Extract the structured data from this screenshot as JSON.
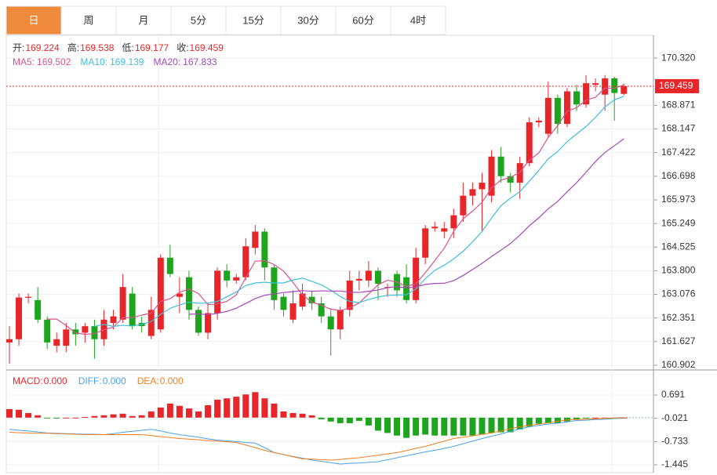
{
  "tabs": [
    "日",
    "周",
    "月",
    "5分",
    "15分",
    "30分",
    "60分",
    "4时"
  ],
  "chart_data": [
    {
      "type": "candlestick",
      "header": [
        {
          "name": "开:",
          "value": 169.224
        },
        {
          "name": "高:",
          "value": 169.538
        },
        {
          "name": "低:",
          "value": 169.177
        },
        {
          "name": "收:",
          "value": 169.459
        }
      ],
      "ma": [
        {
          "name": "MA5:",
          "value": 169.502,
          "color": "#d9538b"
        },
        {
          "name": "MA10:",
          "value": 169.139,
          "color": "#3fbfdc"
        },
        {
          "name": "MA20:",
          "value": 167.833,
          "color": "#a647b8"
        }
      ],
      "up_color": "#e8262a",
      "down_color": "#1ea51e",
      "open": [
        161.6,
        161.7,
        162.97,
        162.9,
        162.3,
        161.5,
        161.5,
        162.0,
        161.9,
        162.1,
        161.7,
        162.2,
        162.3,
        163.1,
        162.2,
        161.8,
        162.0,
        164.2,
        163.0,
        163.6,
        162.6,
        161.9,
        162.5,
        163.8,
        163.5,
        163.6,
        164.5,
        165.0,
        163.9,
        163.0,
        162.3,
        162.7,
        163.0,
        162.8,
        162.4,
        162.0,
        162.6,
        163.5,
        163.5,
        163.8,
        163.3,
        163.7,
        163.6,
        162.9,
        164.2,
        165.1,
        165.0,
        165.1,
        165.5,
        166.1,
        166.3,
        166.1,
        167.3,
        166.7,
        166.5,
        167.1,
        168.35,
        168.0,
        169.1,
        168.3,
        169.3,
        168.9,
        169.5,
        169.2,
        169.7,
        169.224
      ],
      "high": [
        162.1,
        163.1,
        163.1,
        163.3,
        162.4,
        161.9,
        162.2,
        162.2,
        162.2,
        162.3,
        162.6,
        162.6,
        163.7,
        163.3,
        162.4,
        163.0,
        164.3,
        164.6,
        163.6,
        163.8,
        162.7,
        162.8,
        163.9,
        164.0,
        163.7,
        164.8,
        165.2,
        165.1,
        164.0,
        163.1,
        163.2,
        163.4,
        163.2,
        163.0,
        162.6,
        162.7,
        163.8,
        163.8,
        164.1,
        163.9,
        163.4,
        163.8,
        164.0,
        164.5,
        165.2,
        165.3,
        165.3,
        165.7,
        166.5,
        166.5,
        166.8,
        167.5,
        167.6,
        166.8,
        167.3,
        168.5,
        168.5,
        169.6,
        169.2,
        169.4,
        169.5,
        169.8,
        169.7,
        169.8,
        169.75,
        169.538
      ],
      "low": [
        160.95,
        161.5,
        162.8,
        162.2,
        161.4,
        161.3,
        161.3,
        161.5,
        161.6,
        161.1,
        161.5,
        162.0,
        162.2,
        162.0,
        161.9,
        161.7,
        161.9,
        163.6,
        162.5,
        162.3,
        161.8,
        161.7,
        162.3,
        163.3,
        163.4,
        163.5,
        164.3,
        163.5,
        162.6,
        162.4,
        162.2,
        162.6,
        162.6,
        162.2,
        161.2,
        161.7,
        162.4,
        163.2,
        163.3,
        162.9,
        163.0,
        163.0,
        162.8,
        162.8,
        164.0,
        165.0,
        164.8,
        164.8,
        165.3,
        165.8,
        165.0,
        165.9,
        166.5,
        166.2,
        166.0,
        167.0,
        168.2,
        167.9,
        168.0,
        168.2,
        168.7,
        168.8,
        169.3,
        168.7,
        168.4,
        169.177
      ],
      "close": [
        161.7,
        162.98,
        163.0,
        162.3,
        161.6,
        161.7,
        162.0,
        161.85,
        162.1,
        161.7,
        162.3,
        162.4,
        163.3,
        162.1,
        162.1,
        162.6,
        164.2,
        163.7,
        163.1,
        162.6,
        161.9,
        162.5,
        163.8,
        163.5,
        163.6,
        164.55,
        165.0,
        163.9,
        162.9,
        162.6,
        162.8,
        163.1,
        162.8,
        162.4,
        162.0,
        162.6,
        163.5,
        163.55,
        163.8,
        163.4,
        163.3,
        163.2,
        162.9,
        164.2,
        165.1,
        165.15,
        165.1,
        165.5,
        166.1,
        166.3,
        166.5,
        167.3,
        166.7,
        166.5,
        167.1,
        168.35,
        168.4,
        169.1,
        168.3,
        169.3,
        168.9,
        169.55,
        169.55,
        169.7,
        169.25,
        169.459
      ],
      "last_price": 169.459,
      "ylim": [
        160.757,
        171.02
      ],
      "yticks": [
        {
          "value": 170.32,
          "label": "170.320"
        },
        168.871,
        168.147,
        167.422,
        166.698,
        165.973,
        165.249,
        164.525,
        {
          "value": 163.8,
          "label": "163.800"
        },
        {
          "value": 163.076,
          "label": "163.076"
        },
        162.351,
        161.627,
        160.902
      ]
    },
    {
      "type": "macd",
      "legend": [
        {
          "name": "MACD:",
          "value": 0,
          "label": "0.000",
          "color": "#e8262a"
        },
        {
          "name": "DIFF:",
          "value": 0,
          "label": "0.000",
          "color": "#4aa3e8"
        },
        {
          "name": "DEA:",
          "value": 0,
          "label": "0.000",
          "color": "#f07f24"
        }
      ],
      "hist": [
        0.26,
        0.24,
        0.14,
        0.07,
        -0.02,
        -0.02,
        0,
        0,
        0.02,
        0.05,
        0.07,
        0.1,
        0.12,
        0.05,
        0.07,
        0.19,
        0.31,
        0.43,
        0.36,
        0.28,
        0.19,
        0.38,
        0.55,
        0.59,
        0.64,
        0.71,
        0.78,
        0.59,
        0.43,
        0.19,
        0.14,
        0.12,
        0.07,
        -0.05,
        -0.12,
        -0.17,
        -0.17,
        -0.1,
        -0.24,
        -0.4,
        -0.47,
        -0.55,
        -0.62,
        -0.55,
        -0.52,
        -0.55,
        -0.55,
        -0.55,
        -0.55,
        -0.55,
        -0.52,
        -0.47,
        -0.45,
        -0.45,
        -0.36,
        -0.28,
        -0.19,
        -0.17,
        -0.17,
        -0.12,
        -0.05,
        -0.02,
        0,
        0,
        0,
        0
      ],
      "diff": [
        -0.36,
        -0.39,
        -0.41,
        -0.44,
        -0.47,
        -0.48,
        -0.49,
        -0.5,
        -0.51,
        -0.51,
        -0.52,
        -0.49,
        -0.45,
        -0.42,
        -0.39,
        -0.36,
        -0.41,
        -0.47,
        -0.52,
        -0.56,
        -0.6,
        -0.65,
        -0.69,
        -0.71,
        -0.73,
        -0.76,
        -0.78,
        -0.92,
        -1.07,
        -1.13,
        -1.19,
        -1.24,
        -1.3,
        -1.34,
        -1.38,
        -1.42,
        -1.4,
        -1.39,
        -1.37,
        -1.35,
        -1.29,
        -1.23,
        -1.17,
        -1.11,
        -1.05,
        -1.0,
        -0.94,
        -0.88,
        -0.8,
        -0.72,
        -0.64,
        -0.57,
        -0.5,
        -0.42,
        -0.35,
        -0.28,
        -0.24,
        -0.2,
        -0.17,
        -0.13,
        -0.09,
        -0.08,
        -0.06,
        -0.05,
        -0.03,
        -0.02
      ],
      "dea": [
        -0.45,
        -0.46,
        -0.47,
        -0.48,
        -0.48,
        -0.49,
        -0.5,
        -0.51,
        -0.52,
        -0.52,
        -0.52,
        -0.52,
        -0.52,
        -0.52,
        -0.52,
        -0.55,
        -0.58,
        -0.61,
        -0.64,
        -0.66,
        -0.68,
        -0.7,
        -0.72,
        -0.74,
        -0.76,
        -0.84,
        -0.92,
        -1.0,
        -1.07,
        -1.13,
        -1.2,
        -1.26,
        -1.27,
        -1.29,
        -1.3,
        -1.28,
        -1.25,
        -1.23,
        -1.19,
        -1.15,
        -1.11,
        -1.07,
        -1.01,
        -0.94,
        -0.88,
        -0.8,
        -0.72,
        -0.64,
        -0.6,
        -0.56,
        -0.51,
        -0.47,
        -0.41,
        -0.34,
        -0.28,
        -0.24,
        -0.2,
        -0.16,
        -0.11,
        -0.07,
        -0.06,
        -0.05,
        -0.04,
        -0.02,
        -0.01,
        0
      ],
      "ylim": [
        -1.685,
        1.363
      ],
      "yticks": [
        0.691,
        -0.021,
        -0.733,
        -1.445
      ]
    }
  ]
}
